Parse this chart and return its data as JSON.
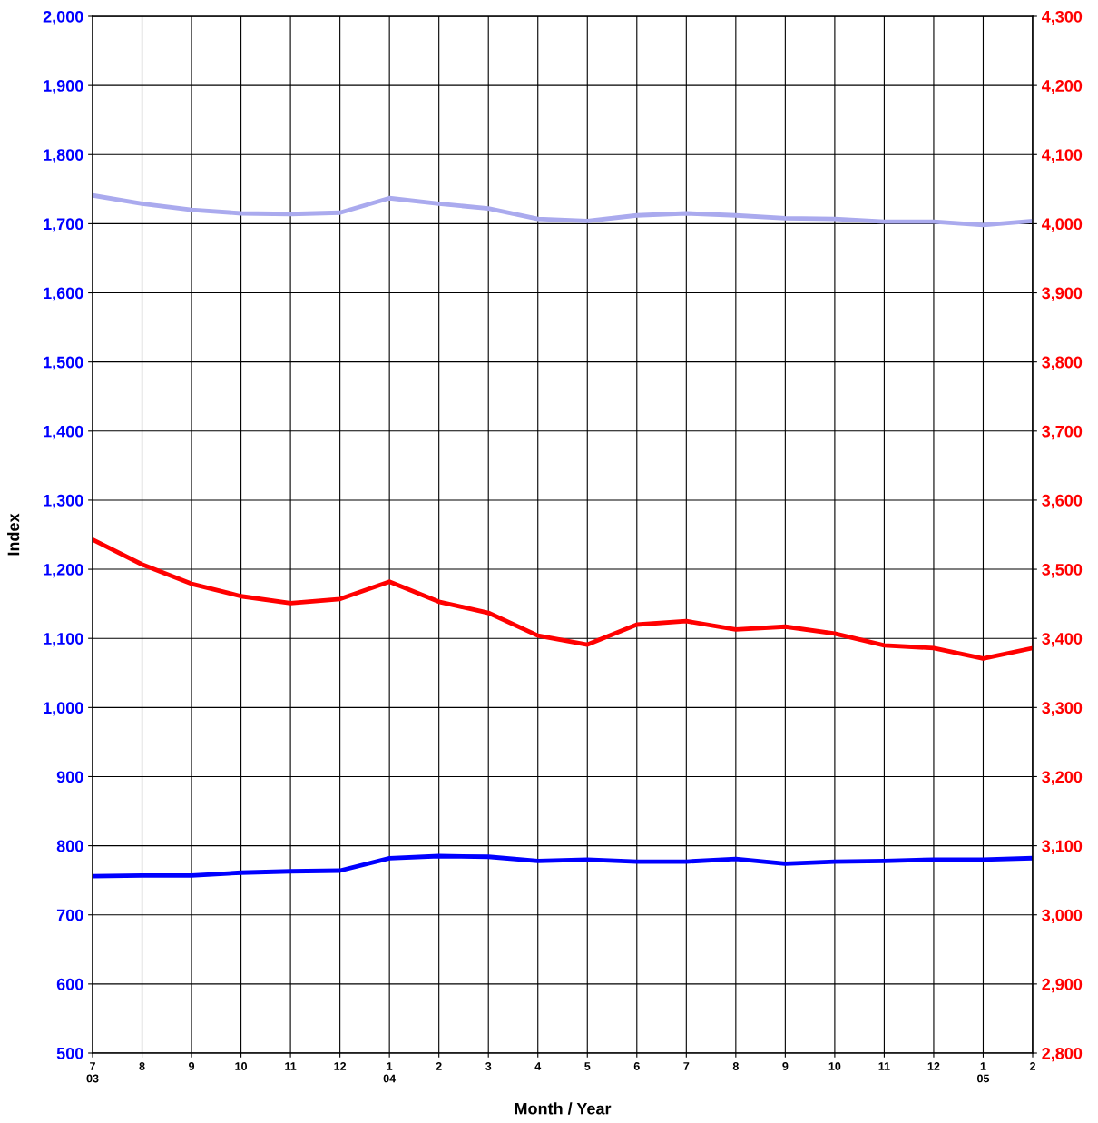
{
  "chart_data": {
    "type": "line",
    "xlabel": "Month / Year",
    "ylabel": "Index",
    "categories": [
      "7\n03",
      "8",
      "9",
      "10",
      "11",
      "12",
      "1\n04",
      "2",
      "3",
      "4",
      "5",
      "6",
      "7",
      "8",
      "9",
      "10",
      "11",
      "12",
      "1\n05",
      "2"
    ],
    "series": [
      {
        "color": "#aaaaee",
        "axis": "y",
        "values": [
          1741,
          1729,
          1720,
          1715,
          1714,
          1716,
          1737,
          1729,
          1722,
          1707,
          1704,
          1712,
          1715,
          1712,
          1708,
          1707,
          1703,
          1703,
          1698,
          1704
        ]
      },
      {
        "color": "#ff0000",
        "axis": "y2",
        "values": [
          3543,
          3507,
          3479,
          3461,
          3451,
          3457,
          3482,
          3453,
          3437,
          3404,
          3391,
          3420,
          3425,
          3413,
          3417,
          3407,
          3390,
          3386,
          3371,
          3386
        ]
      },
      {
        "color": "#0000ff",
        "axis": "y",
        "values": [
          756,
          757,
          757,
          761,
          763,
          764,
          782,
          785,
          784,
          778,
          780,
          777,
          777,
          781,
          774,
          777,
          778,
          780,
          780,
          782
        ]
      }
    ],
    "ylim": [
      500,
      2000
    ],
    "yticks": [
      {
        "value": 500,
        "label": "500"
      },
      {
        "value": 600,
        "label": "600"
      },
      {
        "value": 700,
        "label": "700"
      },
      {
        "value": 800,
        "label": "800"
      },
      {
        "value": 900,
        "label": "900"
      },
      {
        "value": 1000,
        "label": "1,000"
      },
      {
        "value": 1100,
        "label": "1,100"
      },
      {
        "value": 1200,
        "label": "1,200"
      },
      {
        "value": 1300,
        "label": "1,300"
      },
      {
        "value": 1400,
        "label": "1,400"
      },
      {
        "value": 1500,
        "label": "1,500"
      },
      {
        "value": 1600,
        "label": "1,600"
      },
      {
        "value": 1700,
        "label": "1,700"
      },
      {
        "value": 1800,
        "label": "1,800"
      },
      {
        "value": 1900,
        "label": "1,900"
      },
      {
        "value": 2000,
        "label": "2,000"
      }
    ],
    "y2lim": [
      2800,
      4300
    ],
    "y2ticks": [
      {
        "value": 2800,
        "label": "2,800"
      },
      {
        "value": 2900,
        "label": "2,900"
      },
      {
        "value": 3000,
        "label": "3,000"
      },
      {
        "value": 3100,
        "label": "3,100"
      },
      {
        "value": 3200,
        "label": "3,200"
      },
      {
        "value": 3300,
        "label": "3,300"
      },
      {
        "value": 3400,
        "label": "3,400"
      },
      {
        "value": 3500,
        "label": "3,500"
      },
      {
        "value": 3600,
        "label": "3,600"
      },
      {
        "value": 3700,
        "label": "3,700"
      },
      {
        "value": 3800,
        "label": "3,800"
      },
      {
        "value": 3900,
        "label": "3,900"
      },
      {
        "value": 4000,
        "label": "4,000"
      },
      {
        "value": 4100,
        "label": "4,100"
      },
      {
        "value": 4200,
        "label": "4,200"
      },
      {
        "value": 4300,
        "label": "4,300"
      }
    ],
    "grid": true,
    "legend": false,
    "marker": "none",
    "line_style": "solid"
  }
}
